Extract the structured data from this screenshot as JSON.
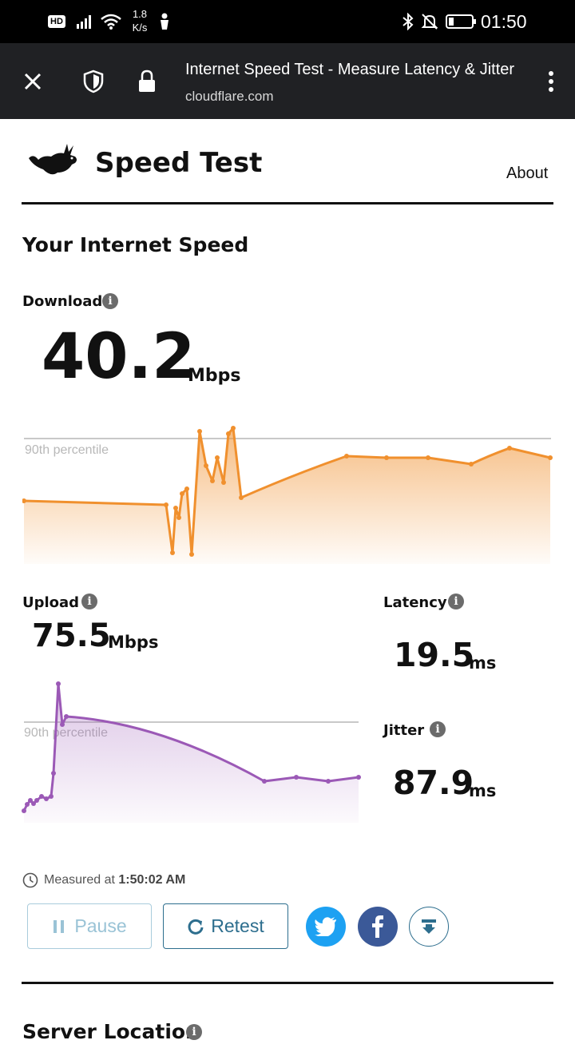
{
  "status_bar": {
    "hd": "HD",
    "net_speed_value": "1.8",
    "net_speed_unit": "K/s",
    "time": "01:50"
  },
  "browser": {
    "page_title": "Internet Speed Test - Measure Latency & Jitter",
    "url": "cloudflare.com"
  },
  "header": {
    "title": "Speed Test",
    "about": "About"
  },
  "main": {
    "heading": "Your Internet Speed",
    "download": {
      "label": "Download",
      "value": "40.2",
      "unit": "Mbps",
      "percentile_label": "90th percentile"
    },
    "upload": {
      "label": "Upload",
      "value": "75.5",
      "unit": "Mbps",
      "percentile_label": "90th percentile"
    },
    "latency": {
      "label": "Latency",
      "value": "19.5",
      "unit": "ms"
    },
    "jitter": {
      "label": "Jitter",
      "value": "87.9",
      "unit": "ms"
    },
    "measured_prefix": "Measured at",
    "measured_time": "1:50:02 AM",
    "pause_label": "Pause",
    "retest_label": "Retest",
    "server_location_heading": "Server Location"
  },
  "colors": {
    "download": "#f0902e",
    "upload": "#9b59b6",
    "twitter": "#1da1f2",
    "facebook": "#3b5998",
    "button_border": "#2d6e8e"
  }
}
